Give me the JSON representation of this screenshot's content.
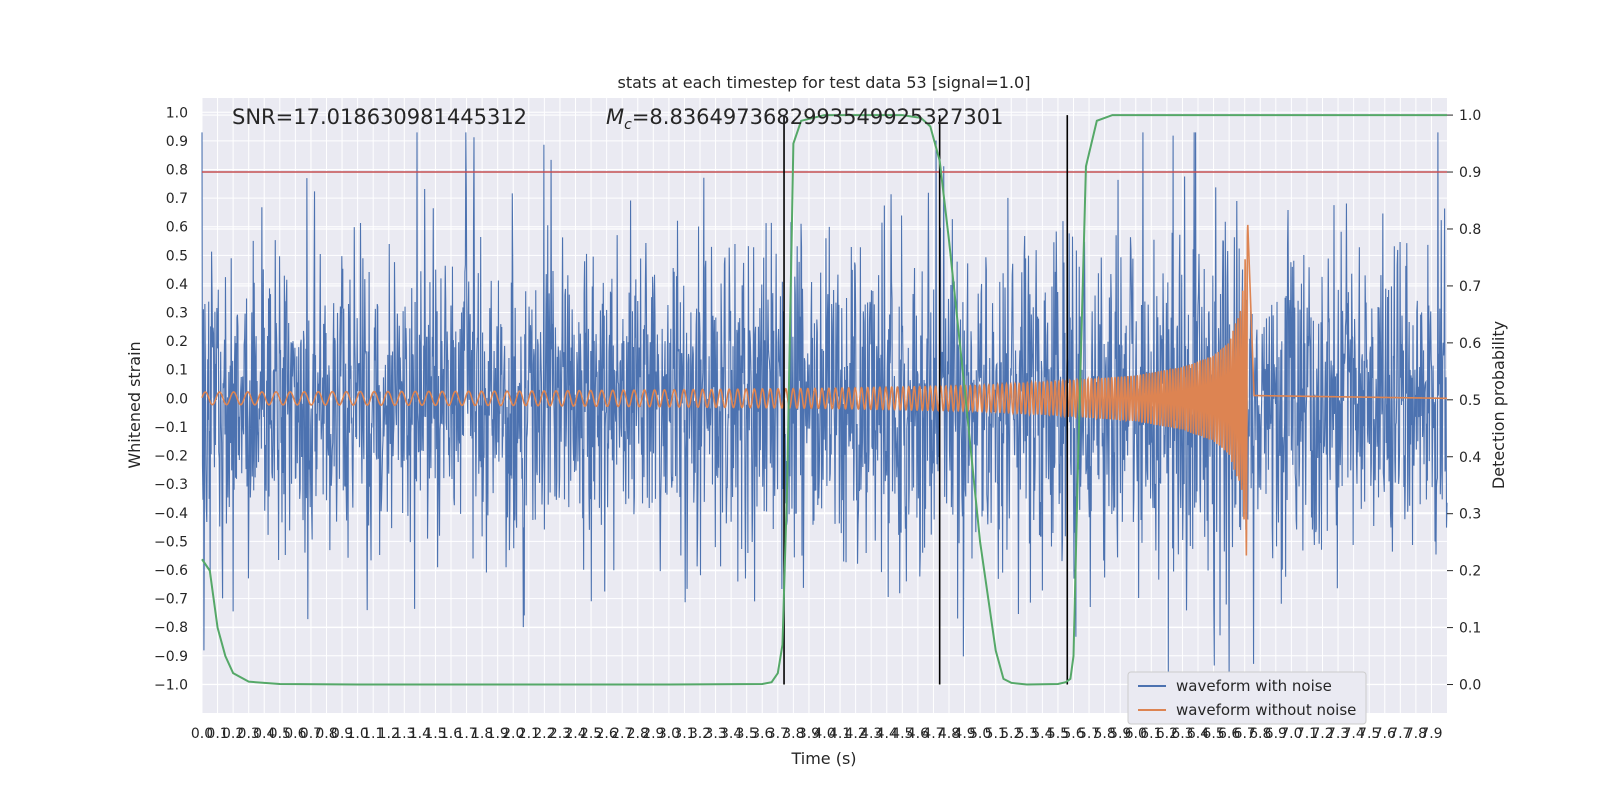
{
  "chart_data": {
    "type": "line",
    "title": "stats at each timestep for test data 53 [signal=1.0]",
    "xlabel": "Time (s)",
    "ylabel": "Whitened strain",
    "ylabel_right": "Detection probability",
    "xlim": [
      0.0,
      8.0
    ],
    "ylim": [
      -1.1,
      1.05
    ],
    "ylim_right": [
      -0.05,
      1.03
    ],
    "x_tick_labels": [
      "0.0",
      "0.1",
      "0.2",
      "0.3",
      "0.4",
      "0.5",
      "0.6",
      "0.7",
      "0.8",
      "0.9",
      "1.0",
      "1.1",
      "1.2",
      "1.3",
      "1.4",
      "1.5",
      "1.6",
      "1.7",
      "1.8",
      "1.9",
      "2.0",
      "2.1",
      "2.2",
      "2.3",
      "2.4",
      "2.5",
      "2.6",
      "2.7",
      "2.8",
      "2.9",
      "3.0",
      "3.1",
      "3.2",
      "3.3",
      "3.4",
      "3.5",
      "3.6",
      "3.7",
      "3.8",
      "3.9",
      "4.0",
      "4.1",
      "4.2",
      "4.3",
      "4.4",
      "4.5",
      "4.6",
      "4.7",
      "4.8",
      "4.9",
      "5.0",
      "5.1",
      "5.2",
      "5.3",
      "5.4",
      "5.5",
      "5.6",
      "5.7",
      "5.8",
      "5.9",
      "6.0",
      "6.1",
      "6.2",
      "6.3",
      "6.4",
      "6.5",
      "6.6",
      "6.7",
      "6.8",
      "6.9",
      "7.0",
      "7.1",
      "7.2",
      "7.3",
      "7.4",
      "7.5",
      "7.6",
      "7.7",
      "7.8",
      "7.9"
    ],
    "y_tick_labels": [
      "−1.0",
      "−0.9",
      "−0.8",
      "−0.7",
      "−0.6",
      "−0.5",
      "−0.4",
      "−0.3",
      "−0.2",
      "−0.1",
      "0.0",
      "0.1",
      "0.2",
      "0.3",
      "0.4",
      "0.5",
      "0.6",
      "0.7",
      "0.8",
      "0.9",
      "1.0"
    ],
    "y_right_tick_labels": [
      "0.0",
      "0.1",
      "0.2",
      "0.3",
      "0.4",
      "0.5",
      "0.6",
      "0.7",
      "0.8",
      "0.9",
      "1.0"
    ],
    "annotations": {
      "snr": "SNR=17.018630981445312",
      "mc_value": "=8.836497368299354992532730​1",
      "mc_symbol": "M",
      "mc_sub": "c"
    },
    "threshold_right": 0.9,
    "vertical_markers_x": [
      3.74,
      4.74,
      5.56
    ],
    "series": [
      {
        "name": "waveform with noise",
        "color": "#4c72b0",
        "noise_envelope_x": [
          0.0,
          3.0,
          4.0,
          5.0,
          5.5,
          6.0,
          6.4,
          6.7,
          6.78,
          8.0
        ],
        "noise_envelope_y": [
          0.48,
          0.5,
          0.52,
          0.55,
          0.58,
          0.62,
          0.66,
          0.72,
          0.5,
          0.5
        ]
      },
      {
        "name": "waveform without noise",
        "color": "#dd8452",
        "envelope_x": [
          0.0,
          2.0,
          4.0,
          5.0,
          5.5,
          6.0,
          6.3,
          6.5,
          6.6,
          6.68,
          6.72,
          6.76,
          8.0
        ],
        "envelope_y": [
          0.022,
          0.025,
          0.035,
          0.045,
          0.06,
          0.08,
          0.11,
          0.15,
          0.2,
          0.32,
          0.62,
          0.01,
          0.0
        ]
      },
      {
        "name": "Detection probability",
        "color": "#55a868",
        "x": [
          0.0,
          0.05,
          0.1,
          0.15,
          0.2,
          0.3,
          0.5,
          1.0,
          3.0,
          3.6,
          3.66,
          3.7,
          3.73,
          3.76,
          3.8,
          3.85,
          4.0,
          4.5,
          4.62,
          4.68,
          4.74,
          4.8,
          4.9,
          5.0,
          5.1,
          5.15,
          5.2,
          5.3,
          5.5,
          5.55,
          5.58,
          5.6,
          5.63,
          5.68,
          5.75,
          5.85,
          6.0,
          8.0
        ],
        "y": [
          0.22,
          0.2,
          0.1,
          0.05,
          0.02,
          0.005,
          0.001,
          0.0,
          0.0,
          0.001,
          0.004,
          0.02,
          0.07,
          0.35,
          0.95,
          0.99,
          1.0,
          1.0,
          0.995,
          0.98,
          0.92,
          0.78,
          0.52,
          0.25,
          0.06,
          0.01,
          0.003,
          0.0,
          0.001,
          0.004,
          0.01,
          0.05,
          0.4,
          0.91,
          0.99,
          1.0,
          1.0,
          1.0
        ]
      }
    ],
    "legend": {
      "placement": "lower-right",
      "entries": [
        "waveform with noise",
        "waveform without noise"
      ]
    },
    "grid": true,
    "colors": {
      "background": "#eaeaf2",
      "grid": "#ffffff",
      "threshold": "#c44e52",
      "marker": "#000000"
    }
  }
}
